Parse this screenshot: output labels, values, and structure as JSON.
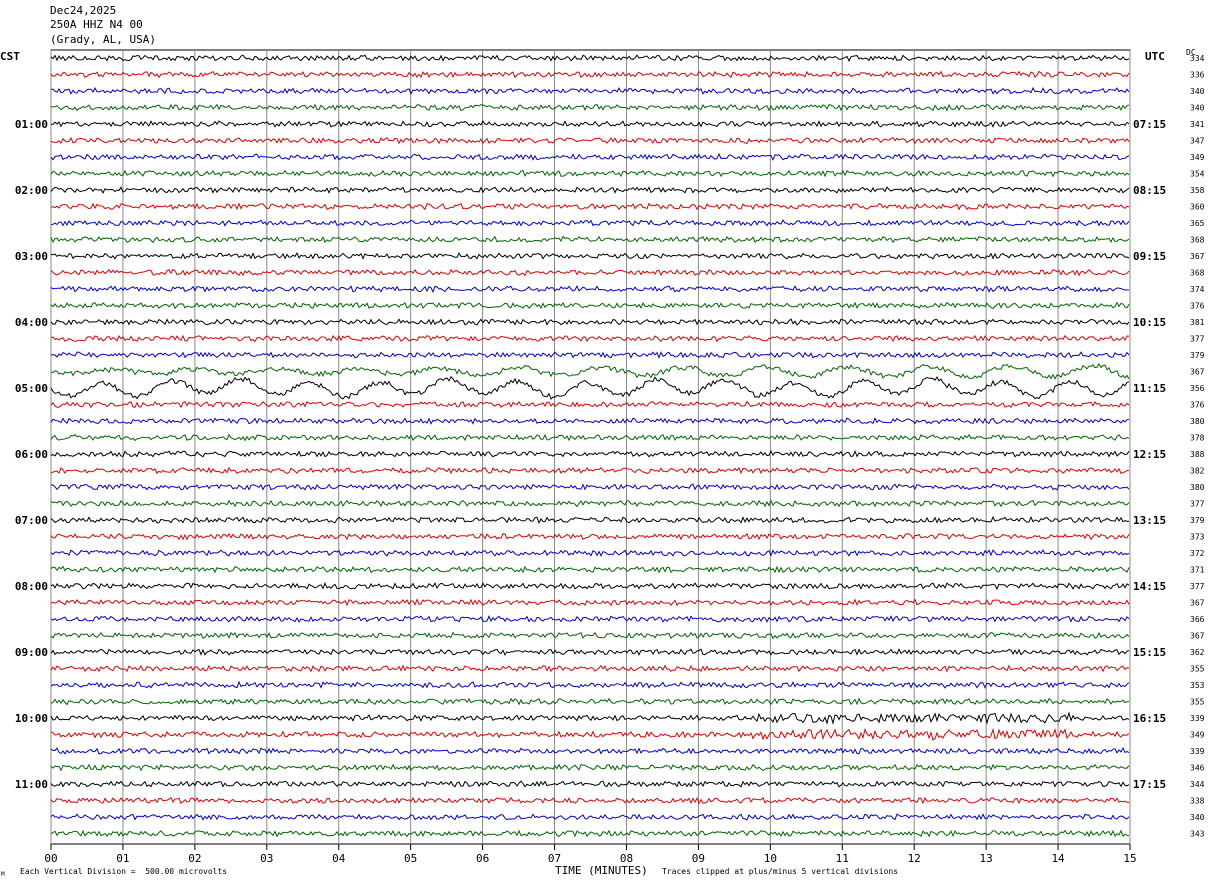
{
  "header": {
    "date": "Dec24,2025",
    "station": "250A HHZ N4 00",
    "location": "(Grady, AL, USA)"
  },
  "left_tz": "CST",
  "right_tz": "UTC",
  "dc_label": "DC",
  "footer": {
    "scale_note": "Each Vertical Division =  500.00 microvolts",
    "xlabel": "TIME (MINUTES)",
    "clip_note": "Traces clipped at plus/minus 5 vertical divisions",
    "corner_mark": "M"
  },
  "colors": {
    "trace_cycle": [
      "#000000",
      "#dd0000",
      "#0000cc",
      "#006600"
    ],
    "grid": "#888888"
  },
  "chart_data": {
    "type": "line",
    "title": "Dec24,2025 250A HHZ N4 00 (Grady, AL, USA)",
    "xlabel": "TIME (MINUTES)",
    "xlim": [
      0,
      15
    ],
    "x_ticks": [
      "00",
      "01",
      "02",
      "03",
      "04",
      "05",
      "06",
      "07",
      "08",
      "09",
      "10",
      "11",
      "12",
      "13",
      "14",
      "15"
    ],
    "rows_per_hour": 4,
    "hour_labels_left": [
      "01:00",
      "02:00",
      "03:00",
      "04:00",
      "05:00",
      "06:00",
      "07:00",
      "08:00",
      "09:00",
      "10:00",
      "11:00"
    ],
    "hour_labels_right": [
      "07:15",
      "08:15",
      "09:15",
      "10:15",
      "11:15",
      "12:15",
      "13:15",
      "14:15",
      "15:15",
      "16:15",
      "17:15"
    ],
    "dc_offsets": [
      334,
      336,
      340,
      340,
      341,
      347,
      349,
      354,
      358,
      360,
      365,
      368,
      367,
      368,
      374,
      376,
      381,
      377,
      379,
      367,
      356,
      376,
      380,
      378,
      388,
      382,
      380,
      377,
      379,
      373,
      372,
      371,
      377,
      367,
      366,
      367,
      362,
      355,
      353,
      355,
      339,
      349,
      339,
      346,
      344,
      338,
      340,
      343
    ],
    "notable_events": [
      {
        "row": 19,
        "description": "long-period oscillation"
      },
      {
        "row": 20,
        "description": "large long-period oscillation"
      },
      {
        "row": 40,
        "description": "increased activity"
      },
      {
        "row": 41,
        "description": "increased activity"
      }
    ]
  }
}
